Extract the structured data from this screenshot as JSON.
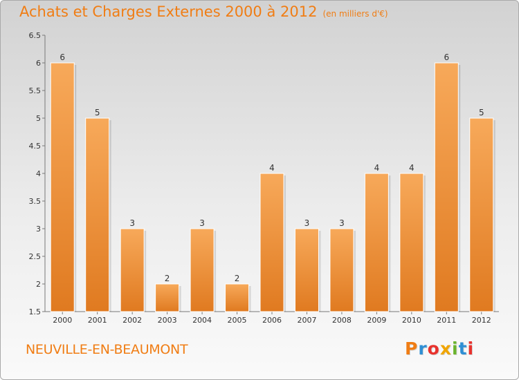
{
  "title": "Achats et Charges Externes 2000 à 2012",
  "subtitle": "(en milliers d'€)",
  "commune": "NEUVILLE-EN-BEAUMONT",
  "logo": {
    "letters": [
      "P",
      "r",
      "o",
      "x",
      "i",
      "t",
      "i"
    ],
    "colors": [
      "#f07d14",
      "#2f8fd4",
      "#e8322d",
      "#f0a500",
      "#6ab42d",
      "#2f8fd4",
      "#e8322d"
    ]
  },
  "colors": {
    "bar_light": "#f7a95a",
    "bar_dark": "#e07a20",
    "accent": "#f07d14"
  },
  "chart_data": {
    "type": "bar",
    "categories": [
      "2000",
      "2001",
      "2002",
      "2003",
      "2004",
      "2005",
      "2006",
      "2007",
      "2008",
      "2009",
      "2010",
      "2011",
      "2012"
    ],
    "values": [
      6,
      5,
      3,
      2,
      3,
      2,
      4,
      3,
      3,
      4,
      4,
      6,
      5
    ],
    "value_labels": [
      "6",
      "5",
      "3",
      "2",
      "3",
      "2",
      "4",
      "3",
      "3",
      "4",
      "4",
      "6",
      "5"
    ],
    "ylim": [
      1.5,
      6.5
    ],
    "yticks": [
      "1.5",
      "2",
      "2.5",
      "3",
      "3.5",
      "4",
      "4.5",
      "5",
      "5.5",
      "6",
      "6.5"
    ],
    "grid": false,
    "legend": "none"
  }
}
